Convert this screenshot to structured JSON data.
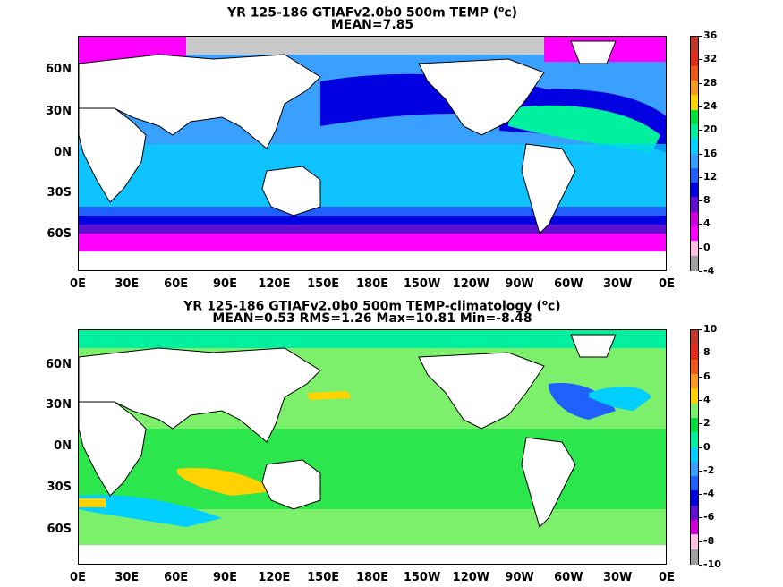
{
  "panels": [
    {
      "title_line1_pre": "YR 125-186 GTIAFv2.0b0 500m TEMP (",
      "title_line1_sup": "o",
      "title_line1_post": "c)",
      "title_line2": "MEAN=7.85",
      "colorbar_labels": [
        "36",
        "32",
        "28",
        "24",
        "20",
        "16",
        "12",
        "8",
        "4",
        "0",
        "-4"
      ],
      "colorbar_colors": [
        "#c0392b",
        "#e32b1c",
        "#ee5a1e",
        "#f59a1e",
        "#ffd200",
        "#00e03c",
        "#00f0a0",
        "#00cfff",
        "#3aa0ff",
        "#2060ff",
        "#0000e0",
        "#6010d0",
        "#d000d8",
        "#ff00ff",
        "#ffc0e0",
        "#a0a0a0"
      ]
    },
    {
      "title_line1_pre": "YR 125-186 GTIAFv2.0b0 500m TEMP-climatology (",
      "title_line1_sup": "o",
      "title_line1_post": "c)",
      "title_line2": "MEAN=0.53   RMS=1.26   Max=10.81   Min=-8.48",
      "colorbar_labels": [
        "10",
        "8",
        "6",
        "4",
        "2",
        "0",
        "-2",
        "-4",
        "-6",
        "-8",
        "-10"
      ],
      "colorbar_colors": [
        "#c0392b",
        "#e32b1c",
        "#ee5a1e",
        "#f59a1e",
        "#ffd200",
        "#7cf06a",
        "#00e03c",
        "#00f0a0",
        "#00cfff",
        "#3aa0ff",
        "#2060ff",
        "#0000e0",
        "#6010d0",
        "#d000d8",
        "#ffc0e0",
        "#a0a0a0"
      ]
    }
  ],
  "lat_labels": [
    "60N",
    "30N",
    "0N",
    "30S",
    "60S"
  ],
  "lon_labels": [
    "0E",
    "30E",
    "60E",
    "90E",
    "120E",
    "150E",
    "180E",
    "150W",
    "120W",
    "90W",
    "60W",
    "30W",
    "0E"
  ],
  "colors": {
    "land": "#ffffff",
    "missing": "#c8c8c8"
  }
}
